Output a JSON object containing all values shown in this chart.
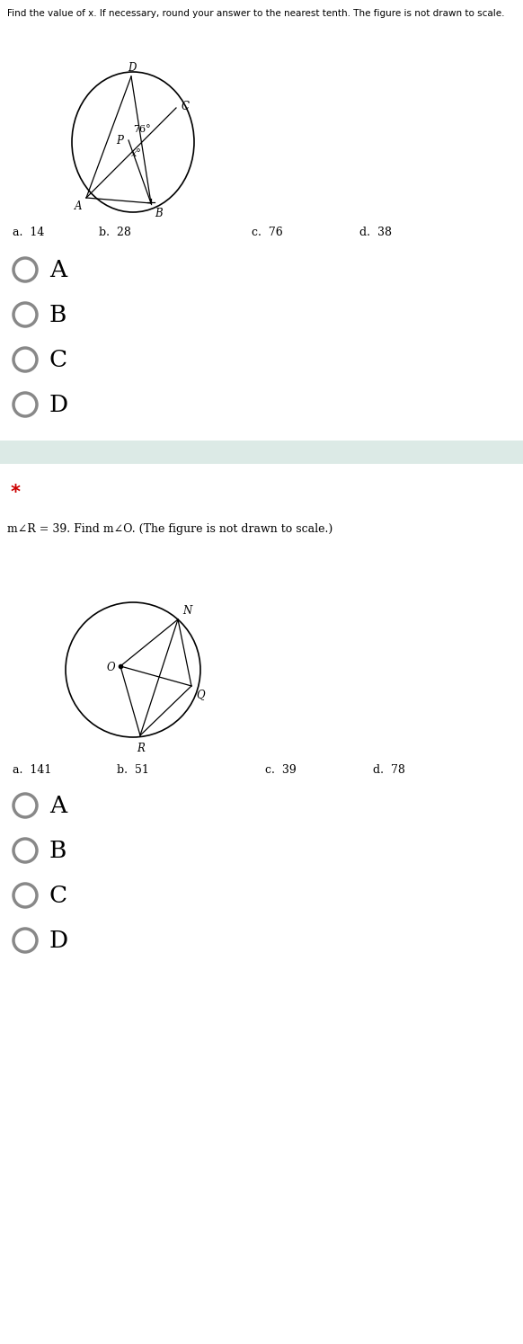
{
  "q1_title": "Find the value of x. If necessary, round your answer to the nearest tenth. The figure is not drawn to scale.",
  "q1_choices_a": "a.  14",
  "q1_choices_b": "b.  28",
  "q1_choices_c": "c.  76",
  "q1_choices_d": "d.  38",
  "q1_answer_labels": [
    "A",
    "B",
    "C",
    "D"
  ],
  "q2_title": "m∠R = 39. Find m∠O. (The figure is not drawn to scale.)",
  "q2_choices_a": "a.  141",
  "q2_choices_b": "b.  51",
  "q2_choices_c": "c.  39",
  "q2_choices_d": "d.  78",
  "q2_answer_labels": [
    "A",
    "B",
    "C",
    "D"
  ],
  "separator_color": "#dceae6",
  "radio_color": "#888888",
  "text_color": "#000000",
  "star_color": "#cc0000"
}
